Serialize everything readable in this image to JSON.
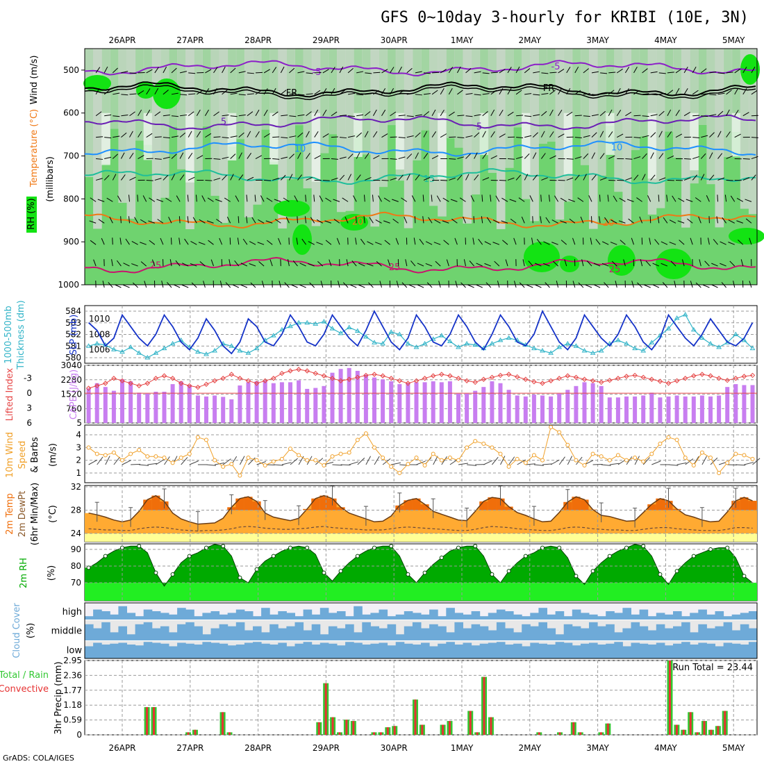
{
  "title": "GFS 0~10day 3-hourly for KRIBI (10E, 3N)",
  "footer": "GrADS: COLA/IGES",
  "dates": [
    "26APR",
    "27APR",
    "28APR",
    "29APR",
    "30APR",
    "1MAY",
    "2MAY",
    "3MAY",
    "4MAY",
    "5MAY"
  ],
  "colors": {
    "rh_light": "#c8d6c8",
    "rh_mid": "#6fd36f",
    "rh_high": "#13e313",
    "wind_barb": "#000000",
    "temp_m5": "#8c1ec8",
    "temp_fr": "#000000",
    "temp_5": "#6a1eb4",
    "temp_10": "#1e90ff",
    "temp_15": "#1ebe9a",
    "temp_20": "#f07814",
    "temp_25": "#c8146e",
    "slp": "#1432c8",
    "thickness": "#32b4c8",
    "lifted_index": "#e64646",
    "cape": "#c87ef0",
    "wind_speed": "#f0a028",
    "temp_fill": "#ffaa32",
    "temp_max_fill": "#f06e0a",
    "dewpt_band": "#ffff96",
    "rh2m_dark": "#00aa00",
    "rh2m_light": "#00dd00",
    "rh2m_base": "#22ee22",
    "cloud_fill": "#6eaad8",
    "cloud_bg": "#e8e8e8",
    "precip_total": "#32c832",
    "precip_conv": "#e63232"
  },
  "panels": {
    "upper_air": {
      "labels": [
        "Wind (m/s)",
        "Temperature (°C)",
        "RH (%)",
        "(millibars)"
      ],
      "y_ticks": [
        "500",
        "600",
        "700",
        "800",
        "900",
        "1000"
      ],
      "contour_labels": [
        "-5",
        "FR",
        "5",
        "10",
        "15",
        "20",
        "25"
      ]
    },
    "thickness": {
      "labels": [
        "1000-500mb",
        "Thickness (dm)",
        "SLP (mb)"
      ],
      "left_ticks": [
        "584",
        "583",
        "582",
        "581",
        "580"
      ],
      "right_ticks": [
        "1010",
        "1008",
        "1006"
      ]
    },
    "cape": {
      "labels": [
        "Lifted Index",
        "CAPE (J/kg)"
      ],
      "li_ticks": [
        "-3",
        "0",
        "3",
        "6"
      ],
      "cape_ticks": [
        "3040",
        "2280",
        "1520",
        "760",
        "5"
      ]
    },
    "wind10m": {
      "labels": [
        "10m Wind",
        "Speed",
        "& Barbs",
        "(m/s)"
      ],
      "y_ticks": [
        "4",
        "3",
        "2",
        "1"
      ]
    },
    "temp2m": {
      "labels": [
        "2m Temp",
        "2m DewPt",
        "(6hr Min/Max)",
        "(°C)"
      ],
      "y_ticks": [
        "32",
        "28",
        "24"
      ]
    },
    "rh2m": {
      "labels": [
        "2m RH",
        "(%)"
      ],
      "y_ticks": [
        "90",
        "80",
        "70"
      ]
    },
    "cloud": {
      "labels": [
        "Cloud Cover",
        "(%)"
      ],
      "levels": [
        "high",
        "middle",
        "low"
      ]
    },
    "precip": {
      "labels": [
        "Total / Rain",
        "Convective",
        "3hr Precip (mm)"
      ],
      "y_ticks": [
        "2.95",
        "2.36",
        "1.77",
        "1.18",
        "0.59",
        "0"
      ],
      "run_total": "Run Total = 23.44"
    }
  },
  "chart_data": {
    "type": "meteogram",
    "title": "GFS 0~10day 3-hourly for KRIBI (10E, 3N)",
    "x_dates": [
      "26APR",
      "27APR",
      "28APR",
      "29APR",
      "30APR",
      "1MAY",
      "2MAY",
      "3MAY",
      "4MAY",
      "5MAY"
    ],
    "steps_per_day": 8,
    "total_steps": 80,
    "slp_mb": [
      1009.5,
      1008.5,
      1006.5,
      1007.5,
      1010.5,
      1009,
      1007.5,
      1006.5,
      1008,
      1010.5,
      1009,
      1007,
      1006,
      1007.5,
      1010,
      1008.5,
      1006.5,
      1005.5,
      1007,
      1010,
      1009,
      1007,
      1006.5,
      1008,
      1010.5,
      1009,
      1007,
      1006.5,
      1008,
      1010.5,
      1009,
      1007.5,
      1006.5,
      1008.5,
      1011,
      1009,
      1007,
      1006,
      1007.5,
      1010.5,
      1009,
      1007,
      1006.5,
      1008,
      1010.5,
      1009,
      1007,
      1006,
      1008,
      1010.5,
      1009,
      1007,
      1006.5,
      1008,
      1011,
      1009,
      1007,
      1006,
      1007.5,
      1010.5,
      1009,
      1007.5,
      1006.5,
      1008,
      1010.5,
      1009,
      1007,
      1006,
      1007.5,
      1010.5,
      1009,
      1007.5,
      1006.5,
      1008,
      1010,
      1008.5,
      1007,
      1006.5,
      1007.5,
      1009.5
    ],
    "thickness_dm": [
      581,
      581.2,
      581.1,
      580.7,
      580.5,
      580.9,
      580.4,
      580,
      580.4,
      580.8,
      581.2,
      581.5,
      580.9,
      580.5,
      580.3,
      580.6,
      581.2,
      581,
      580.6,
      580.4,
      580.8,
      581.5,
      581.9,
      582.4,
      582.7,
      583,
      583,
      582.9,
      583.1,
      582.5,
      582.1,
      582.6,
      582.3,
      581.8,
      581.3,
      581.2,
      582.2,
      582,
      581.2,
      580.9,
      581.2,
      581.6,
      581.9,
      581.4,
      580.9,
      581.2,
      581.1,
      580.8,
      581.2,
      581.5,
      581.7,
      581.5,
      581.1,
      580.8,
      580.6,
      580.4,
      580.9,
      581.2,
      581,
      580.6,
      580.4,
      580.6,
      581.2,
      581.5,
      581.2,
      580.8,
      580.6,
      581.3,
      581.9,
      582.5,
      583.4,
      583.7,
      582.4,
      581.7,
      581.2,
      580.9,
      581.3,
      582,
      581.5,
      580.8
    ],
    "lifted_index": [
      -1,
      -1.5,
      -2,
      -3,
      -2.5,
      -2,
      -1.5,
      -2,
      -3,
      -3.5,
      -3,
      -2,
      -1.5,
      -1.2,
      -1.8,
      -2.5,
      -3,
      -3.8,
      -3,
      -2.5,
      -2,
      -2.5,
      -3,
      -4,
      -4.5,
      -4.8,
      -4.5,
      -4,
      -3.5,
      -3,
      -2.5,
      -2.8,
      -3.2,
      -3.6,
      -3.8,
      -3.5,
      -3,
      -2.5,
      -2,
      -2.5,
      -3,
      -3.5,
      -3.8,
      -3.5,
      -3,
      -2.5,
      -2.2,
      -2.8,
      -3.2,
      -3.6,
      -3.8,
      -3.3,
      -2.8,
      -2.3,
      -2,
      -2.5,
      -3,
      -3.5,
      -3.2,
      -2.8,
      -2.5,
      -2.2,
      -2.6,
      -3,
      -3.4,
      -3.6,
      -3.2,
      -2.8,
      -2.4,
      -2,
      -2.5,
      -3,
      -3.5,
      -3.8,
      -3.5,
      -3,
      -2.6,
      -3,
      -3.4,
      -3.6
    ],
    "cape_jkg": [
      1820,
      2100,
      1900,
      1700,
      2300,
      2200,
      1600,
      1550,
      1650,
      1650,
      2050,
      2200,
      2000,
      1450,
      1400,
      1450,
      1380,
      1250,
      1980,
      2150,
      2200,
      2250,
      2100,
      2150,
      2150,
      2250,
      1800,
      1850,
      1950,
      2650,
      2850,
      2900,
      2750,
      2550,
      2400,
      2300,
      2200,
      2050,
      2100,
      2150,
      2150,
      2200,
      2150,
      2200,
      1550,
      1550,
      1700,
      1900,
      2200,
      2100,
      1750,
      1450,
      1400,
      1500,
      1450,
      1400,
      1550,
      1750,
      1950,
      2150,
      2100,
      1950,
      1350,
      1350,
      1400,
      1400,
      1450,
      1600,
      1350,
      1400,
      1450,
      1400,
      1400,
      1450,
      1400,
      1450,
      1900,
      2050,
      2000,
      2000
    ],
    "wind10m_ms": [
      3.0,
      2.5,
      2.4,
      2.6,
      2.0,
      2.5,
      2.8,
      2.3,
      2.3,
      2.2,
      1.8,
      2.2,
      2.5,
      3.8,
      3.6,
      2.0,
      1.5,
      1.7,
      0.8,
      2.2,
      2.0,
      1.6,
      1.9,
      2.1,
      2.9,
      2.4,
      2.0,
      2.0,
      1.6,
      2.3,
      2.5,
      2.6,
      3.6,
      4.1,
      3.0,
      2.2,
      1.5,
      1.0,
      1.7,
      2.2,
      1.6,
      2.5,
      2.0,
      2.2,
      2.0,
      3.0,
      3.5,
      3.3,
      3.0,
      2.5,
      1.5,
      2.1,
      1.8,
      2.4,
      2.0,
      4.6,
      4.2,
      3.2,
      2.0,
      1.6,
      2.5,
      2.3,
      2.0,
      2.4,
      2.0,
      2.2,
      1.9,
      2.5,
      3.3,
      3.8,
      3.6,
      2.2,
      1.6,
      2.6,
      2.2,
      1.0,
      1.8,
      2.5,
      2.4,
      2.1
    ],
    "temp2m_c": [
      27.5,
      27.2,
      26.8,
      26.3,
      26,
      26.3,
      27.8,
      29.8,
      30.5,
      29.5,
      27.5,
      26.5,
      26,
      25.6,
      25.7,
      25.8,
      26.6,
      28.5,
      30,
      30.3,
      29.5,
      27.5,
      26.8,
      26.5,
      26.2,
      26.6,
      28.2,
      30,
      30.5,
      30,
      28.5,
      27.5,
      27,
      26.5,
      26,
      26.1,
      27,
      28.8,
      29.7,
      30,
      29,
      27.8,
      27.3,
      26.8,
      26.3,
      26.2,
      27.8,
      29.5,
      30.2,
      30,
      28.6,
      27.6,
      27.1,
      26.5,
      26,
      26.1,
      27.6,
      29.4,
      30.3,
      29.8,
      28.1,
      27.1,
      26.9,
      26.5,
      26.1,
      26.2,
      27.6,
      29,
      30,
      29.6,
      28.2,
      27.2,
      26.8,
      26.3,
      26,
      26.1,
      27.7,
      29.6,
      30.2,
      29.6
    ],
    "dewpt2m_c": [
      24.8,
      24.7,
      24.6,
      24.6,
      24.5,
      24.5,
      24.8,
      25,
      25.1,
      25,
      24.8,
      24.6,
      24.5,
      24.4,
      24.5,
      24.5,
      24.6,
      24.8,
      25.1,
      25.2,
      25.1,
      24.9,
      24.8,
      24.7,
      24.7,
      24.8,
      24.9,
      25.1,
      25.2,
      25,
      24.9,
      24.8,
      24.7,
      24.6,
      24.6,
      24.6,
      24.8,
      25,
      25.1,
      25,
      24.9,
      24.8,
      24.7,
      24.6,
      24.5,
      24.5,
      24.7,
      25,
      25.2,
      25.1,
      25,
      24.8,
      24.7,
      24.6,
      24.5,
      24.5,
      24.7,
      25,
      25.1,
      25,
      24.8,
      24.7,
      24.6,
      24.6,
      24.5,
      24.5,
      24.7,
      24.9,
      25,
      25,
      24.8,
      24.7,
      24.6,
      24.5,
      24.5,
      24.5,
      24.7,
      25,
      25,
      24.9
    ],
    "rh2m_pct": [
      79,
      82,
      86,
      89,
      91,
      92,
      92,
      88,
      76,
      68,
      75,
      82,
      86,
      88,
      91,
      93,
      92,
      86,
      73,
      70,
      78,
      83,
      86,
      89,
      91,
      92,
      91,
      87,
      76,
      71,
      77,
      82,
      86,
      89,
      91,
      92,
      92,
      86,
      75,
      70,
      76,
      81,
      85,
      89,
      91,
      92,
      92,
      86,
      75,
      70,
      77,
      82,
      86,
      88,
      91,
      92,
      91,
      85,
      74,
      69,
      77,
      82,
      86,
      89,
      91,
      93,
      92,
      86,
      75,
      69,
      77,
      82,
      86,
      88,
      90,
      91,
      91,
      85,
      74,
      70
    ],
    "cloud_high_pct": [
      20,
      60,
      50,
      30,
      80,
      40,
      20,
      60,
      50,
      40,
      30,
      70,
      60,
      20,
      40,
      50,
      30,
      40,
      60,
      50,
      20,
      70,
      30,
      50,
      40,
      20,
      60,
      30,
      70,
      40,
      50,
      20,
      80,
      30,
      40,
      60,
      20,
      30,
      50,
      40,
      30,
      60,
      20,
      70,
      40,
      30,
      50,
      20,
      40,
      60,
      50,
      30,
      20,
      40,
      70,
      30,
      50,
      20,
      60,
      40,
      30,
      20,
      50,
      40,
      70,
      30,
      60,
      20,
      40,
      30,
      50,
      20,
      40,
      60,
      30,
      50,
      20,
      30,
      40,
      50
    ],
    "cloud_mid_pct": [
      80,
      60,
      90,
      40,
      70,
      30,
      80,
      90,
      60,
      70,
      40,
      80,
      90,
      70,
      30,
      60,
      80,
      70,
      90,
      50,
      70,
      40,
      80,
      60,
      70,
      90,
      50,
      80,
      30,
      70,
      60,
      80,
      40,
      90,
      70,
      60,
      80,
      30,
      70,
      90,
      60,
      80,
      70,
      40,
      90,
      60,
      80,
      70,
      50,
      90,
      60,
      40,
      80,
      70,
      90,
      60,
      30,
      80,
      70,
      60,
      90,
      70,
      80,
      40,
      60,
      90,
      70,
      50,
      80,
      60,
      70,
      90,
      40,
      80,
      60,
      70,
      90,
      50,
      80,
      60
    ],
    "cloud_low_pct": [
      70,
      90,
      80,
      85,
      90,
      80,
      75,
      95,
      90,
      85,
      70,
      90,
      85,
      80,
      95,
      90,
      85,
      75,
      80,
      90,
      95,
      85,
      80,
      90,
      70,
      85,
      95,
      80,
      90,
      85,
      75,
      95,
      90,
      80,
      85,
      90,
      75,
      95,
      85,
      80,
      90,
      70,
      85,
      95,
      80,
      90,
      75,
      85,
      90,
      95,
      80,
      85,
      70,
      90,
      85,
      80,
      95,
      90,
      75,
      85,
      90,
      80,
      85,
      95,
      70,
      90,
      85,
      80,
      90,
      75,
      85,
      95,
      80,
      90,
      85,
      70,
      90,
      85,
      80,
      95
    ],
    "precip_total_mm": [
      0,
      0,
      0,
      0,
      1.1,
      1.1,
      0,
      0,
      0,
      0,
      0.1,
      0.2,
      0,
      0,
      0,
      0.9,
      0.1,
      0,
      0,
      0,
      0,
      0,
      0,
      0,
      0,
      0,
      0,
      0,
      0,
      0.5,
      2.05,
      0.7,
      0.1,
      0.6,
      0.55,
      0,
      0,
      0.1,
      0.1,
      0.3,
      0.35,
      0,
      0,
      1.4,
      0.4,
      0,
      0,
      0.4,
      0.55,
      0,
      0,
      0.95,
      0.1,
      2.3,
      0.7,
      0,
      0,
      0,
      0,
      0,
      0,
      0.1,
      0,
      0,
      0.1,
      0,
      0.5,
      0.1,
      0,
      0,
      0.1,
      0.45,
      0,
      0,
      0,
      0,
      0,
      0,
      0,
      0
    ],
    "precip_conv_mm": [
      0,
      0,
      0,
      0,
      1.1,
      1.1,
      0,
      0,
      0,
      0,
      0.1,
      0.2,
      0,
      0,
      0,
      0.9,
      0.1,
      0,
      0,
      0,
      0,
      0,
      0,
      0,
      0,
      0,
      0,
      0,
      0,
      0.5,
      2.05,
      0.7,
      0.1,
      0.6,
      0.55,
      0,
      0,
      0.1,
      0.1,
      0.3,
      0.35,
      0,
      0,
      1.4,
      0.4,
      0,
      0,
      0.4,
      0.55,
      0,
      0,
      0.95,
      0.1,
      2.3,
      0.7,
      0,
      0,
      0,
      0,
      0,
      0,
      0.1,
      0,
      0,
      0.1,
      0,
      0.5,
      0.1,
      0,
      0,
      0.1,
      0.45,
      0,
      0,
      0,
      0,
      0,
      0,
      0,
      0
    ],
    "precip_tail_mm": [
      2.95,
      0.4,
      0.2,
      0.9,
      0.1,
      0.55,
      0.2,
      0.35,
      0.95
    ],
    "run_total_mm": 23.44
  }
}
